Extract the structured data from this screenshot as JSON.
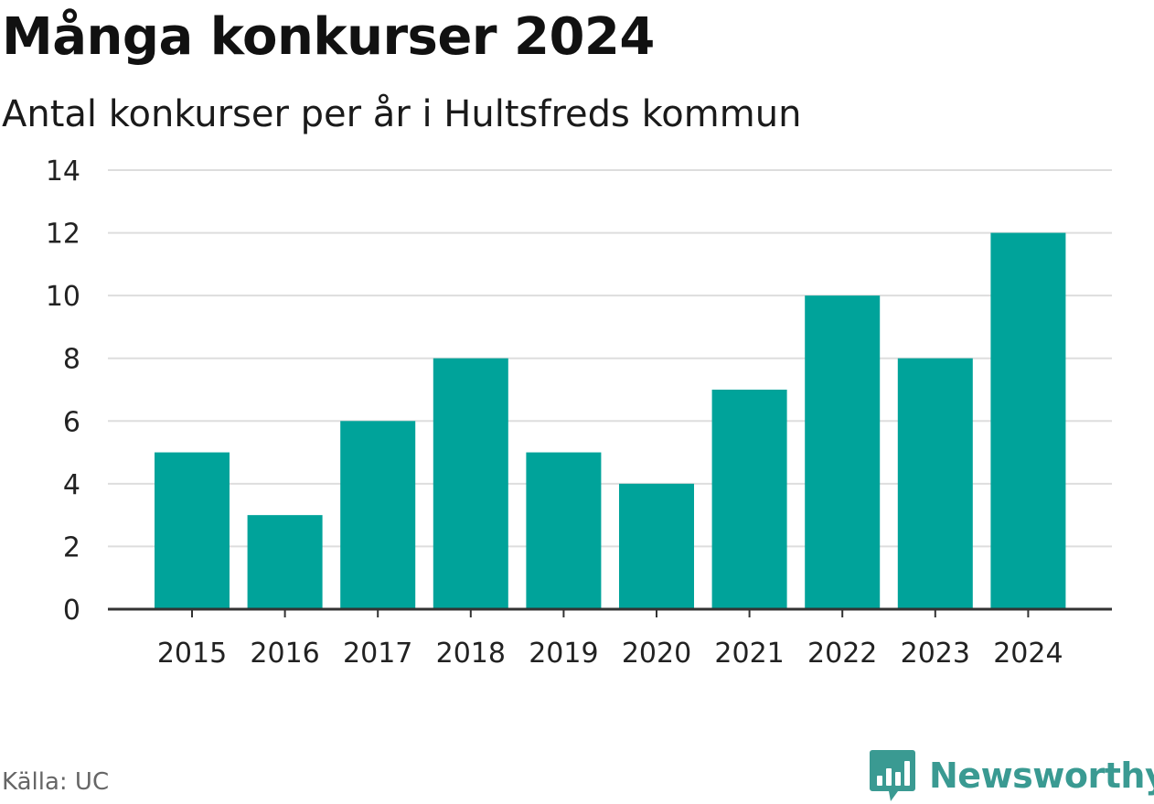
{
  "title": "Många konkurser 2024",
  "subtitle": "Antal konkurser per år i Hultsfreds kommun",
  "source": "Källa: UC",
  "brand": {
    "name": "Newsworthy",
    "icon": "newsworthy-logo-icon",
    "color": "#3a9a92"
  },
  "chart_data": {
    "type": "bar",
    "categories": [
      "2015",
      "2016",
      "2017",
      "2018",
      "2019",
      "2020",
      "2021",
      "2022",
      "2023",
      "2024"
    ],
    "values": [
      5,
      3,
      6,
      8,
      5,
      4,
      7,
      10,
      8,
      12
    ],
    "ylim": [
      0,
      14
    ],
    "yticks": [
      0,
      2,
      4,
      6,
      8,
      10,
      12,
      14
    ],
    "grid": true,
    "legend": "none",
    "bar_color": "#00a39a",
    "grid_color": "#dddddd",
    "axis_color": "#333333"
  }
}
